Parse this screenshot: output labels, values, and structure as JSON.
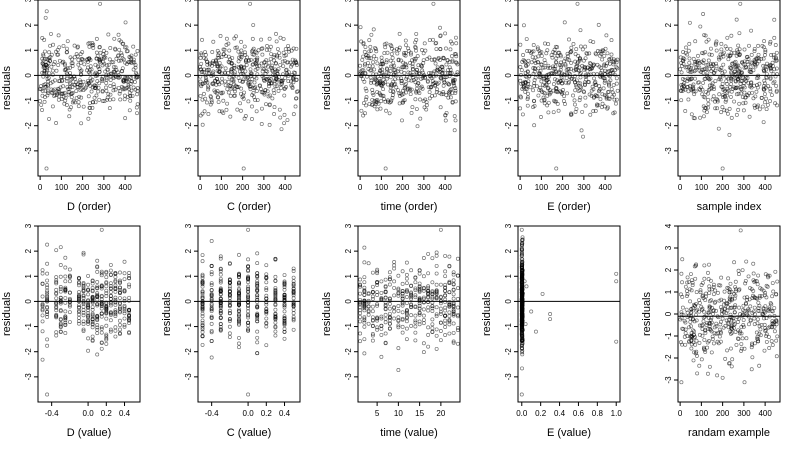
{
  "chart_data": [
    {
      "type": "scatter",
      "xlabel": "D (order)",
      "ylabel": "residuals",
      "x_ticks": [
        0,
        100,
        200,
        300,
        400
      ],
      "x_tick_labels": [
        "0",
        "100",
        "200",
        "300",
        "400"
      ],
      "xlim": [
        -10,
        470
      ],
      "y_ticks": [
        -3,
        -2,
        -1,
        0,
        1,
        2,
        3
      ],
      "y_tick_labels": [
        "-3",
        "-2",
        "-1",
        "0",
        "1",
        "2",
        "3"
      ],
      "ylim": [
        -4,
        3
      ],
      "reference_line": 0,
      "x_kind": "order",
      "n": 460,
      "seed": 11,
      "outliers": [
        [
          30,
          -3.7
        ],
        [
          282,
          2.85
        ]
      ]
    },
    {
      "type": "scatter",
      "xlabel": "C (order)",
      "ylabel": "residuals",
      "x_ticks": [
        0,
        100,
        200,
        300,
        400
      ],
      "x_tick_labels": [
        "0",
        "100",
        "200",
        "300",
        "400"
      ],
      "xlim": [
        -10,
        470
      ],
      "y_ticks": [
        -3,
        -2,
        -1,
        0,
        1,
        2,
        3
      ],
      "y_tick_labels": [
        "-3",
        "-2",
        "-1",
        "0",
        "1",
        "2",
        "3"
      ],
      "ylim": [
        -4,
        3
      ],
      "reference_line": 0,
      "x_kind": "order",
      "n": 460,
      "seed": 12,
      "outliers": [
        [
          205,
          -3.7
        ],
        [
          235,
          2.85
        ]
      ]
    },
    {
      "type": "scatter",
      "xlabel": "time (order)",
      "ylabel": "residuals",
      "x_ticks": [
        0,
        100,
        200,
        300,
        400
      ],
      "x_tick_labels": [
        "0",
        "100",
        "200",
        "300",
        "400"
      ],
      "xlim": [
        -10,
        470
      ],
      "y_ticks": [
        -3,
        -2,
        -1,
        0,
        1,
        2,
        3
      ],
      "y_tick_labels": [
        "-3",
        "-2",
        "-1",
        "0",
        "1",
        "2",
        "3"
      ],
      "ylim": [
        -4,
        3
      ],
      "reference_line": 0,
      "x_kind": "order",
      "n": 460,
      "seed": 13,
      "outliers": [
        [
          120,
          -3.7
        ],
        [
          345,
          2.85
        ]
      ]
    },
    {
      "type": "scatter",
      "xlabel": "E (order)",
      "ylabel": "residuals",
      "x_ticks": [
        0,
        100,
        200,
        300,
        400
      ],
      "x_tick_labels": [
        "0",
        "100",
        "200",
        "300",
        "400"
      ],
      "xlim": [
        -10,
        470
      ],
      "y_ticks": [
        -3,
        -2,
        -1,
        0,
        1,
        2,
        3
      ],
      "y_tick_labels": [
        "-3",
        "-2",
        "-1",
        "0",
        "1",
        "2",
        "3"
      ],
      "ylim": [
        -4,
        3
      ],
      "reference_line": 0,
      "x_kind": "order",
      "n": 460,
      "seed": 14,
      "outliers": [
        [
          170,
          -3.7
        ],
        [
          270,
          2.85
        ]
      ]
    },
    {
      "type": "scatter",
      "xlabel": "sample index",
      "ylabel": "residuals",
      "x_ticks": [
        0,
        100,
        200,
        300,
        400
      ],
      "x_tick_labels": [
        "0",
        "100",
        "200",
        "300",
        "400"
      ],
      "xlim": [
        -10,
        470
      ],
      "y_ticks": [
        -3,
        -2,
        -1,
        0,
        1,
        2,
        3
      ],
      "y_tick_labels": [
        "-3",
        "-2",
        "-1",
        "0",
        "1",
        "2",
        "3"
      ],
      "ylim": [
        -4,
        3
      ],
      "reference_line": 0,
      "x_kind": "order",
      "n": 460,
      "seed": 15,
      "outliers": [
        [
          200,
          -3.7
        ],
        [
          283,
          2.85
        ]
      ]
    },
    {
      "type": "scatter",
      "xlabel": "D (value)",
      "ylabel": "residuals",
      "x_ticks": [
        -0.4,
        0,
        0.2,
        0.4
      ],
      "x_tick_labels": [
        "-0.4",
        "0.0",
        "0.2",
        "0.4"
      ],
      "xlim": [
        -0.55,
        0.57
      ],
      "y_ticks": [
        -3,
        -2,
        -1,
        0,
        1,
        2,
        3
      ],
      "y_tick_labels": [
        "-3",
        "-2",
        "-1",
        "0",
        "1",
        "2",
        "3"
      ],
      "ylim": [
        -4,
        3
      ],
      "reference_line": 0,
      "x_kind": "discrete",
      "x_values": [
        -0.5,
        -0.45,
        -0.35,
        -0.3,
        -0.25,
        -0.2,
        -0.1,
        -0.05,
        0,
        0.05,
        0.1,
        0.15,
        0.2,
        0.25,
        0.3,
        0.35,
        0.4,
        0.45
      ],
      "n": 420,
      "seed": 21,
      "outliers": [
        [
          -0.45,
          -3.7
        ],
        [
          0.15,
          2.85
        ]
      ]
    },
    {
      "type": "scatter",
      "xlabel": "C (value)",
      "ylabel": "residuals",
      "x_ticks": [
        -0.4,
        0,
        0.2,
        0.4
      ],
      "x_tick_labels": [
        "-0.4",
        "0.0",
        "0.2",
        "0.4"
      ],
      "xlim": [
        -0.55,
        0.57
      ],
      "y_ticks": [
        -3,
        -2,
        -1,
        0,
        1,
        2,
        3
      ],
      "y_tick_labels": [
        "-3",
        "-2",
        "-1",
        "0",
        "1",
        "2",
        "3"
      ],
      "ylim": [
        -4,
        3
      ],
      "reference_line": 0,
      "x_kind": "discrete",
      "x_values": [
        -0.5,
        -0.4,
        -0.3,
        -0.2,
        -0.1,
        0,
        0.1,
        0.2,
        0.3,
        0.4,
        0.5
      ],
      "n": 420,
      "seed": 22,
      "outliers": [
        [
          0,
          -3.7
        ],
        [
          0,
          2.85
        ]
      ]
    },
    {
      "type": "scatter",
      "xlabel": "time (value)",
      "ylabel": "residuals",
      "x_ticks": [
        5,
        10,
        15,
        20
      ],
      "x_tick_labels": [
        "5",
        "10",
        "15",
        "20"
      ],
      "xlim": [
        0.5,
        24.5
      ],
      "y_ticks": [
        -3,
        -2,
        -1,
        0,
        1,
        2,
        3
      ],
      "y_tick_labels": [
        "-3",
        "-2",
        "-1",
        "0",
        "1",
        "2",
        "3"
      ],
      "ylim": [
        -4,
        3
      ],
      "reference_line": 0,
      "x_kind": "discrete",
      "x_values": [
        1,
        2,
        3,
        4,
        5,
        6,
        7,
        8,
        9,
        10,
        11,
        12,
        13,
        14,
        15,
        16,
        17,
        18,
        19,
        20,
        21,
        22,
        23,
        24
      ],
      "n": 420,
      "seed": 23,
      "outliers": [
        [
          8,
          -3.7
        ],
        [
          20,
          2.85
        ]
      ]
    },
    {
      "type": "scatter",
      "xlabel": "E (value)",
      "ylabel": "residuals",
      "x_ticks": [
        0,
        0.2,
        0.4,
        0.6,
        0.8,
        1
      ],
      "x_tick_labels": [
        "0.0",
        "0.2",
        "0.4",
        "0.6",
        "0.8",
        "1.0"
      ],
      "xlim": [
        -0.04,
        1.04
      ],
      "y_ticks": [
        -3,
        -2,
        -1,
        0,
        1,
        2,
        3
      ],
      "y_tick_labels": [
        "-3",
        "-2",
        "-1",
        "0",
        "1",
        "2",
        "3"
      ],
      "ylim": [
        -4,
        3
      ],
      "reference_line": 0,
      "x_kind": "cluster",
      "n": 420,
      "seed": 24,
      "outliers": [
        [
          0,
          -3.7
        ],
        [
          0,
          2.85
        ],
        [
          1,
          -1.6
        ],
        [
          1,
          1.1
        ],
        [
          1,
          0.8
        ],
        [
          0.22,
          0.3
        ],
        [
          0.3,
          -0.7
        ],
        [
          0.3,
          -0.5
        ],
        [
          0.05,
          0.6
        ],
        [
          0.1,
          -0.4
        ],
        [
          0.15,
          -1.2
        ],
        [
          0.04,
          -0.9
        ],
        [
          0.03,
          0.8
        ]
      ]
    },
    {
      "type": "scatter",
      "xlabel": "randam example",
      "ylabel": "residuals",
      "x_ticks": [
        0,
        100,
        200,
        300,
        400
      ],
      "x_tick_labels": [
        "0",
        "100",
        "200",
        "300",
        "400"
      ],
      "xlim": [
        -10,
        470
      ],
      "y_ticks": [
        -3,
        -2,
        -1,
        0,
        1,
        2,
        3,
        4
      ],
      "y_tick_labels": [
        "-3",
        "-2",
        "-1",
        "0",
        "1",
        "2",
        "3",
        "4"
      ],
      "ylim": [
        -4,
        4
      ],
      "reference_line": -0.1,
      "x_kind": "order",
      "n": 460,
      "seed": 31,
      "sd": 1.05,
      "outliers": [
        [
          285,
          3.8
        ],
        [
          80,
          -2.7
        ],
        [
          200,
          -2.9
        ],
        [
          140,
          -2.4
        ]
      ]
    }
  ]
}
